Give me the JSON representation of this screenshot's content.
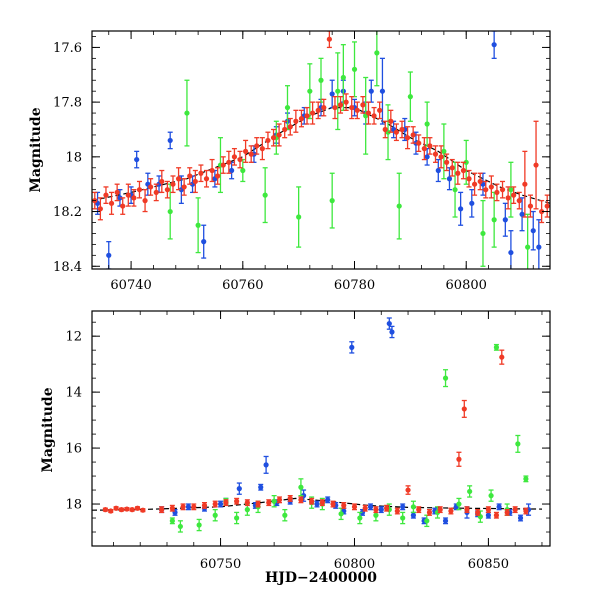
{
  "colors": {
    "blue": "#1f4fe0",
    "green": "#3ee83e",
    "red": "#f03a26",
    "model": "#000000"
  },
  "chart_data": [
    {
      "type": "scatter",
      "title": "",
      "xlabel": "",
      "ylabel": "Magnitude",
      "xlim": [
        60733,
        60815
      ],
      "ylim": [
        18.41,
        17.54
      ],
      "y_inverted": true,
      "x_ticks": [
        60740,
        60760,
        60780,
        60800
      ],
      "x_tick_labels": [
        "60740",
        "60760",
        "60780",
        "60800"
      ],
      "y_ticks": [
        17.6,
        17.8,
        18,
        18.2,
        18.4
      ],
      "y_tick_labels": [
        "17.6",
        "17.8",
        "18",
        "18.2",
        "18.4"
      ],
      "grid": false,
      "model_curve": {
        "x": [
          60733,
          60740,
          60750,
          60760,
          60766,
          60772,
          60776,
          60780,
          60786,
          60790,
          60795,
          60800,
          60806,
          60810,
          60815
        ],
        "y": [
          18.16,
          18.13,
          18.08,
          18.0,
          17.92,
          17.85,
          17.82,
          17.82,
          17.88,
          17.93,
          17.98,
          18.05,
          18.11,
          18.14,
          18.17
        ]
      },
      "series": [
        {
          "color_key": "blue",
          "x": [
            60734,
            60736,
            60738,
            60740,
            60741,
            60743,
            60745,
            60747,
            60749,
            60751,
            60753,
            60755,
            60758,
            60762,
            60766,
            60768,
            60771,
            60774,
            60776,
            60778,
            60780,
            60782,
            60783,
            60785,
            60787,
            60789,
            60791,
            60793,
            60795,
            60797,
            60799,
            60801,
            60803,
            60805,
            60807,
            60808,
            60810,
            60812,
            60813
          ],
          "y": [
            18.17,
            18.36,
            18.15,
            18.14,
            18.01,
            18.1,
            18.1,
            17.94,
            18.12,
            18.1,
            18.31,
            18.08,
            18.05,
            17.99,
            17.92,
            17.87,
            17.85,
            17.82,
            17.77,
            17.76,
            17.82,
            17.84,
            17.76,
            17.76,
            17.9,
            17.9,
            17.95,
            18.0,
            18.05,
            18.08,
            18.19,
            18.17,
            18.1,
            17.59,
            18.23,
            18.35,
            18.21,
            18.27,
            18.33
          ],
          "err": [
            0.04,
            0.05,
            0.03,
            0.03,
            0.03,
            0.04,
            0.03,
            0.03,
            0.05,
            0.03,
            0.06,
            0.03,
            0.03,
            0.03,
            0.03,
            0.03,
            0.03,
            0.03,
            0.05,
            0.04,
            0.03,
            0.04,
            0.04,
            0.12,
            0.03,
            0.04,
            0.04,
            0.03,
            0.04,
            0.04,
            0.06,
            0.05,
            0.04,
            0.05,
            0.06,
            0.08,
            0.06,
            0.07,
            0.1
          ]
        },
        {
          "color_key": "green",
          "x": [
            60747,
            60750,
            60752,
            60756,
            60760,
            60764,
            60766,
            60768,
            60770,
            60772,
            60774,
            60776,
            60777,
            60778,
            60780,
            60782,
            60784,
            60786,
            60788,
            60790,
            60793,
            60796,
            60798,
            60800,
            60803,
            60805,
            60808,
            60811
          ],
          "y": [
            18.2,
            17.84,
            18.25,
            18.03,
            18.05,
            18.14,
            17.93,
            17.82,
            18.22,
            17.76,
            17.72,
            18.16,
            17.76,
            17.71,
            17.68,
            17.85,
            17.62,
            17.91,
            18.18,
            17.78,
            17.88,
            17.98,
            18.12,
            18.02,
            18.28,
            18.23,
            18.12,
            18.33
          ],
          "err": [
            0.1,
            0.12,
            0.1,
            0.1,
            0.04,
            0.1,
            0.06,
            0.08,
            0.11,
            0.1,
            0.08,
            0.1,
            0.14,
            0.12,
            0.1,
            0.14,
            0.12,
            0.1,
            0.12,
            0.09,
            0.08,
            0.1,
            0.1,
            0.08,
            0.12,
            0.1,
            0.1,
            0.12
          ]
        },
        {
          "color_key": "red",
          "x": [
            60733.5,
            60734.5,
            60735.5,
            60736.5,
            60737.5,
            60738.5,
            60739.5,
            60740.5,
            60741.5,
            60742.5,
            60743.5,
            60744.5,
            60745.5,
            60746.5,
            60747.5,
            60748.5,
            60749.5,
            60750.5,
            60751.5,
            60752.5,
            60753.5,
            60754.5,
            60755.5,
            60756.5,
            60757.5,
            60758.5,
            60759.5,
            60760.5,
            60761.5,
            60762.5,
            60763.5,
            60764.5,
            60765.5,
            60766.5,
            60767.5,
            60768.5,
            60769.5,
            60770.5,
            60771.5,
            60772.5,
            60773.5,
            60774.5,
            60775.5,
            60776.5,
            60777.5,
            60778.5,
            60779.5,
            60780.5,
            60781.5,
            60782.5,
            60783.5,
            60784.5,
            60785.5,
            60786.5,
            60787.5,
            60788.5,
            60789.5,
            60790.5,
            60791.5,
            60792.5,
            60793.5,
            60794.5,
            60795.5,
            60796.5,
            60797.5,
            60798.5,
            60799.5,
            60800.5,
            60801.5,
            60802.5,
            60803.5,
            60804.5,
            60805.5,
            60806.5,
            60807.5,
            60808.5,
            60809.5,
            60810.5,
            60811.5,
            60812.5,
            60813.5,
            60814.5
          ],
          "y": [
            18.16,
            18.19,
            18.14,
            18.17,
            18.13,
            18.18,
            18.14,
            18.15,
            18.12,
            18.16,
            18.11,
            18.13,
            18.09,
            18.12,
            18.1,
            18.08,
            18.11,
            18.07,
            18.09,
            18.06,
            18.08,
            18.05,
            18.07,
            18.03,
            18.02,
            18.0,
            18.01,
            17.98,
            17.99,
            17.96,
            17.97,
            17.94,
            17.93,
            17.92,
            17.9,
            17.89,
            17.87,
            17.86,
            17.85,
            17.84,
            17.83,
            17.82,
            17.57,
            17.82,
            17.81,
            17.8,
            17.82,
            17.83,
            17.81,
            17.84,
            17.85,
            17.83,
            17.9,
            17.87,
            17.91,
            17.9,
            17.93,
            17.92,
            17.95,
            17.97,
            17.96,
            17.99,
            18.0,
            18.02,
            18.04,
            18.06,
            18.05,
            18.08,
            18.1,
            18.09,
            18.12,
            18.11,
            18.13,
            18.12,
            18.15,
            18.14,
            18.16,
            18.1,
            18.18,
            18.03,
            18.2,
            18.18
          ],
          "err": [
            0.03,
            0.04,
            0.03,
            0.04,
            0.03,
            0.03,
            0.04,
            0.03,
            0.03,
            0.04,
            0.03,
            0.03,
            0.04,
            0.03,
            0.03,
            0.04,
            0.03,
            0.03,
            0.04,
            0.03,
            0.03,
            0.04,
            0.03,
            0.03,
            0.04,
            0.03,
            0.03,
            0.04,
            0.03,
            0.03,
            0.04,
            0.03,
            0.03,
            0.04,
            0.03,
            0.03,
            0.04,
            0.03,
            0.03,
            0.04,
            0.03,
            0.03,
            0.03,
            0.04,
            0.03,
            0.03,
            0.04,
            0.03,
            0.03,
            0.04,
            0.03,
            0.03,
            0.03,
            0.04,
            0.03,
            0.03,
            0.04,
            0.03,
            0.03,
            0.04,
            0.03,
            0.03,
            0.04,
            0.03,
            0.03,
            0.04,
            0.03,
            0.03,
            0.04,
            0.03,
            0.03,
            0.04,
            0.03,
            0.03,
            0.04,
            0.03,
            0.03,
            0.12,
            0.04,
            0.16,
            0.04,
            0.04
          ]
        }
      ]
    },
    {
      "type": "scatter",
      "title": "",
      "xlabel": "HJD−2400000",
      "ylabel": "Magnitude",
      "xlim": [
        60702,
        60873
      ],
      "ylim": [
        19.5,
        11.1
      ],
      "y_inverted": true,
      "x_ticks": [
        60750,
        60800,
        60850
      ],
      "x_tick_labels": [
        "60750",
        "60800",
        "60850"
      ],
      "y_ticks": [
        12,
        14,
        16,
        18
      ],
      "y_tick_labels": [
        "12",
        "14",
        "16",
        "18"
      ],
      "grid": false,
      "model_curve": {
        "x": [
          60702,
          60720,
          60735,
          60750,
          60765,
          60778,
          60790,
          60805,
          60820,
          60840,
          60860,
          60870
        ],
        "y": [
          18.22,
          18.2,
          18.15,
          18.1,
          17.95,
          17.8,
          17.9,
          18.05,
          18.12,
          18.15,
          18.17,
          18.18
        ]
      },
      "series": [
        {
          "color_key": "blue",
          "x": [
            60728,
            60733,
            60738,
            60744,
            60750,
            60752,
            60757,
            60763,
            60765,
            60767,
            60771,
            60776,
            60781,
            60786,
            60790,
            60793,
            60796,
            60799,
            60803,
            60806,
            60810,
            60813,
            60814,
            60818,
            60822,
            60826,
            60830,
            60834,
            60838,
            60842,
            60846,
            60850,
            60854,
            60858,
            60862,
            60865
          ],
          "y": [
            18.2,
            18.3,
            18.1,
            18.15,
            18.0,
            17.9,
            17.45,
            18.05,
            17.4,
            16.6,
            17.95,
            17.9,
            17.7,
            18.0,
            17.85,
            18.05,
            18.25,
            12.4,
            18.3,
            18.1,
            18.2,
            11.55,
            11.85,
            18.1,
            18.4,
            18.6,
            18.25,
            18.6,
            18.1,
            18.3,
            18.35,
            18.4,
            18.1,
            18.3,
            18.5,
            18.2
          ],
          "err": [
            0.1,
            0.1,
            0.1,
            0.1,
            0.1,
            0.1,
            0.2,
            0.1,
            0.1,
            0.3,
            0.1,
            0.1,
            0.2,
            0.1,
            0.1,
            0.1,
            0.1,
            0.2,
            0.1,
            0.1,
            0.1,
            0.2,
            0.2,
            0.1,
            0.1,
            0.1,
            0.1,
            0.1,
            0.1,
            0.2,
            0.1,
            0.1,
            0.1,
            0.1,
            0.1,
            0.2
          ]
        },
        {
          "color_key": "green",
          "x": [
            60732,
            60735,
            60742,
            60748,
            60752,
            60756,
            60760,
            60764,
            60770,
            60774,
            60780,
            60784,
            60788,
            60795,
            60802,
            60808,
            60813,
            60818,
            60822,
            60827,
            60831,
            60834,
            60839,
            60843,
            60847,
            60851,
            60853,
            60857,
            60861,
            60864
          ],
          "y": [
            18.6,
            18.8,
            18.75,
            18.4,
            17.9,
            18.5,
            18.2,
            18.1,
            17.9,
            18.4,
            17.4,
            17.95,
            18.0,
            18.35,
            18.5,
            18.4,
            18.2,
            18.5,
            18.1,
            18.6,
            18.3,
            13.5,
            18.0,
            17.55,
            18.45,
            17.7,
            12.4,
            18.2,
            15.85,
            17.1
          ],
          "err": [
            0.1,
            0.2,
            0.2,
            0.2,
            0.1,
            0.2,
            0.2,
            0.2,
            0.2,
            0.2,
            0.3,
            0.2,
            0.2,
            0.2,
            0.2,
            0.2,
            0.2,
            0.2,
            0.2,
            0.2,
            0.2,
            0.3,
            0.2,
            0.2,
            0.2,
            0.2,
            0.1,
            0.2,
            0.3,
            0.1
          ]
        },
        {
          "color_key": "red",
          "x": [
            60707,
            60709,
            60711,
            60713,
            60715,
            60717,
            60719,
            60721,
            60728,
            60732,
            60736,
            60740,
            60744,
            60748,
            60752,
            60756,
            60760,
            60764,
            60768,
            60772,
            60776,
            60780,
            60784,
            60788,
            60792,
            60796,
            60800,
            60804,
            60808,
            60812,
            60816,
            60820,
            60824,
            60828,
            60832,
            60836,
            60839,
            60841,
            60842,
            60846,
            60850,
            60853,
            60855,
            60857,
            60860,
            60864
          ],
          "y": [
            18.2,
            18.25,
            18.15,
            18.2,
            18.18,
            18.2,
            18.15,
            18.22,
            18.2,
            18.15,
            18.1,
            18.1,
            18.05,
            18.0,
            17.95,
            17.9,
            17.95,
            18.0,
            17.95,
            17.85,
            17.8,
            17.85,
            17.9,
            17.95,
            18.0,
            18.05,
            18.1,
            18.15,
            18.2,
            18.15,
            18.25,
            17.5,
            18.2,
            18.3,
            18.2,
            18.25,
            16.4,
            14.6,
            18.2,
            18.3,
            18.2,
            18.4,
            12.75,
            18.3,
            18.2,
            18.25
          ],
          "err": [
            0.05,
            0.05,
            0.05,
            0.05,
            0.05,
            0.05,
            0.05,
            0.05,
            0.1,
            0.1,
            0.1,
            0.1,
            0.1,
            0.1,
            0.1,
            0.1,
            0.1,
            0.1,
            0.1,
            0.1,
            0.1,
            0.1,
            0.1,
            0.1,
            0.1,
            0.1,
            0.1,
            0.1,
            0.1,
            0.1,
            0.1,
            0.15,
            0.1,
            0.1,
            0.1,
            0.1,
            0.25,
            0.3,
            0.1,
            0.1,
            0.1,
            0.1,
            0.25,
            0.1,
            0.1,
            0.1
          ]
        }
      ]
    }
  ]
}
